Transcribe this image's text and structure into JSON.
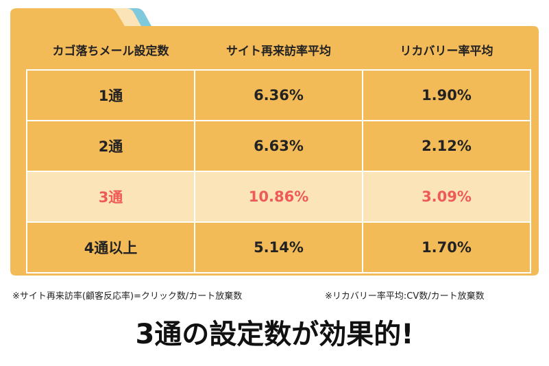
{
  "table": {
    "headers": [
      "カゴ落ちメール設定数",
      "サイト再来訪率平均",
      "リカバリー率平均"
    ],
    "rows": [
      [
        "1通",
        "6.36%",
        "1.90%"
      ],
      [
        "2通",
        "6.63%",
        "2.12%"
      ],
      [
        "3通",
        "10.86%",
        "3.09%"
      ],
      [
        "4通以上",
        "5.14%",
        "1.70%"
      ]
    ]
  },
  "notes": [
    "※サイト再来訪率(顧客反応率)=クリック数/カート放棄数",
    "※リカバリー率平均:CV数/カート放棄数"
  ],
  "conclusion": "3通の設定数が効果的!"
}
